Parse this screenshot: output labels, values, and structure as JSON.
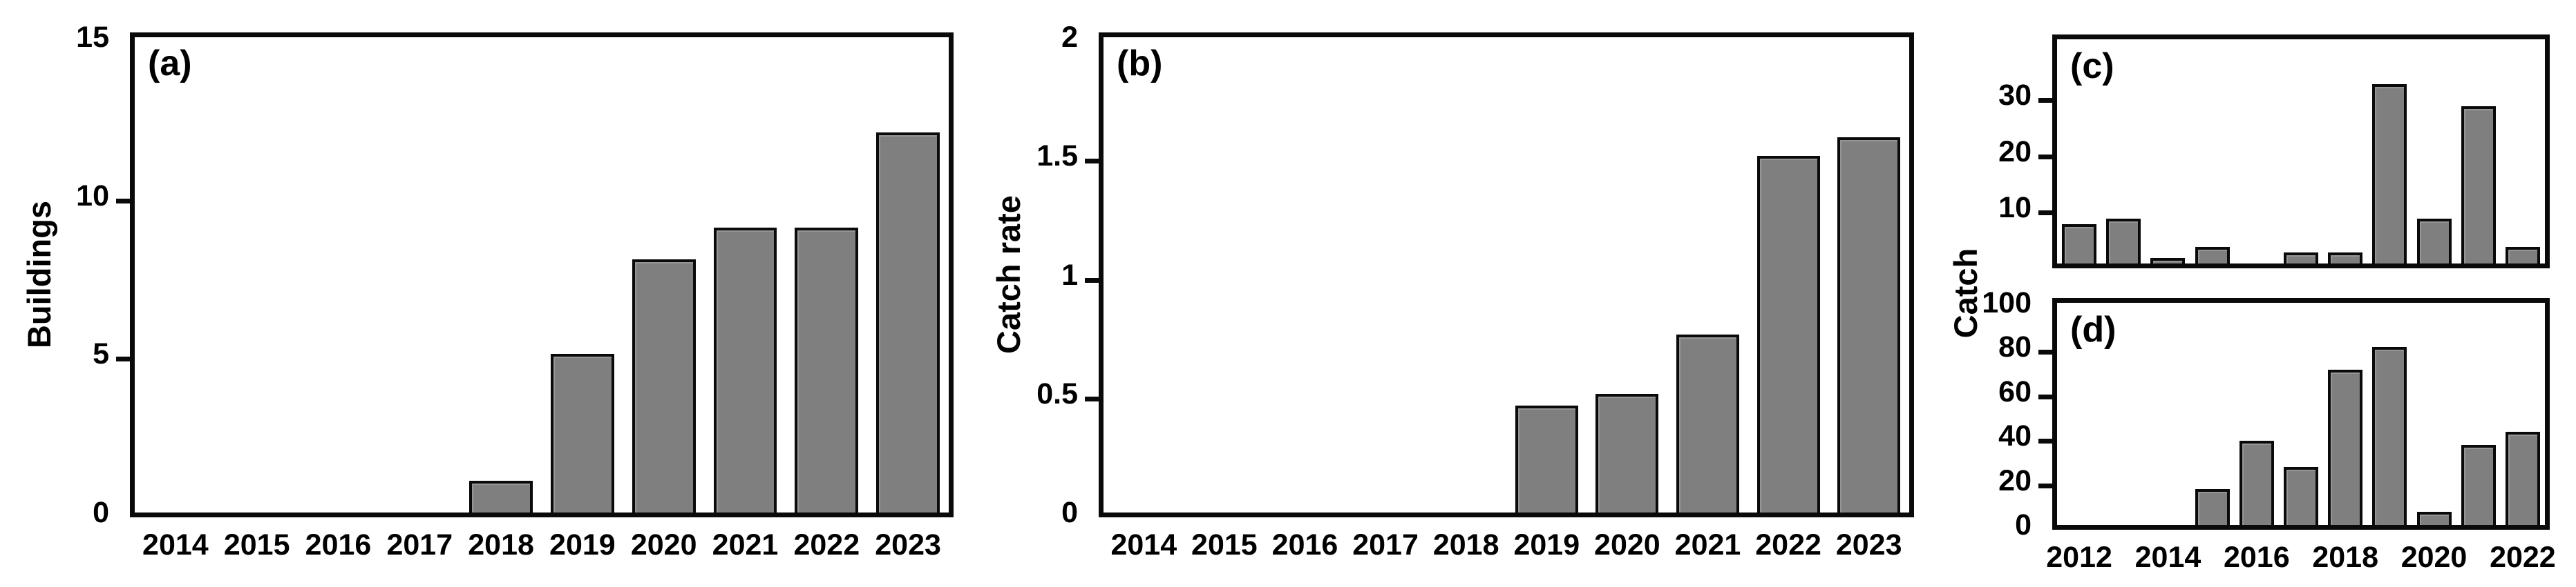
{
  "shared": {
    "ylabel_cd": "Catch"
  },
  "colors": {
    "bar_fill": "#7f7f7f",
    "bar_border": "#0a0a0a",
    "axis": "#0a0a0a",
    "background": "#ffffff"
  },
  "chart_data": [
    {
      "id": "a",
      "type": "bar",
      "panel_label": "(a)",
      "ylabel": "Buildings",
      "x": [
        "2014",
        "2015",
        "2016",
        "2017",
        "2018",
        "2019",
        "2020",
        "2021",
        "2022",
        "2023"
      ],
      "values": [
        0,
        0,
        0,
        0,
        1,
        5,
        8,
        9,
        9,
        12
      ],
      "ylim": [
        0,
        15
      ],
      "yticks": [
        {
          "v": 0,
          "label": "0"
        },
        {
          "v": 5,
          "label": "5"
        },
        {
          "v": 10,
          "label": "10"
        },
        {
          "v": 15,
          "label": "15"
        }
      ],
      "xticks": [
        "2014",
        "2015",
        "2016",
        "2017",
        "2018",
        "2019",
        "2020",
        "2021",
        "2022",
        "2023"
      ],
      "grid": false,
      "legend": false
    },
    {
      "id": "b",
      "type": "bar",
      "panel_label": "(b)",
      "ylabel": "Catch rate",
      "x": [
        "2014",
        "2015",
        "2016",
        "2017",
        "2018",
        "2019",
        "2020",
        "2021",
        "2022",
        "2023"
      ],
      "values": [
        0,
        0,
        0,
        0,
        0,
        0.45,
        0.5,
        0.75,
        1.5,
        1.58
      ],
      "ylim": [
        0,
        2
      ],
      "yticks": [
        {
          "v": 0,
          "label": "0"
        },
        {
          "v": 0.5,
          "label": "0.5"
        },
        {
          "v": 1,
          "label": "1"
        },
        {
          "v": 1.5,
          "label": "1.5"
        },
        {
          "v": 2,
          "label": "2"
        }
      ],
      "xticks": [
        "2014",
        "2015",
        "2016",
        "2017",
        "2018",
        "2019",
        "2020",
        "2021",
        "2022",
        "2023"
      ],
      "grid": false,
      "legend": false
    },
    {
      "id": "c",
      "type": "bar",
      "panel_label": "(c)",
      "ylabel": "",
      "x": [
        "2012",
        "2013",
        "2014",
        "2015",
        "2016",
        "2017",
        "2018",
        "2019",
        "2020",
        "2021",
        "2022"
      ],
      "values": [
        7,
        8,
        1,
        3,
        0,
        2,
        2,
        32,
        8,
        28,
        3
      ],
      "ylim": [
        0,
        40
      ],
      "yticks": [
        {
          "v": 10,
          "label": "10"
        },
        {
          "v": 20,
          "label": "20"
        },
        {
          "v": 30,
          "label": "30"
        }
      ],
      "xticks": [],
      "grid": false,
      "legend": false
    },
    {
      "id": "d",
      "type": "bar",
      "panel_label": "(d)",
      "ylabel": "",
      "x": [
        "2012",
        "2013",
        "2014",
        "2015",
        "2016",
        "2017",
        "2018",
        "2019",
        "2020",
        "2021",
        "2022"
      ],
      "values": [
        0,
        0,
        0,
        16,
        38,
        26,
        70,
        80,
        6,
        36,
        42
      ],
      "ylim": [
        0,
        100
      ],
      "yticks": [
        {
          "v": 0,
          "label": "0"
        },
        {
          "v": 20,
          "label": "20"
        },
        {
          "v": 40,
          "label": "40"
        },
        {
          "v": 60,
          "label": "60"
        },
        {
          "v": 80,
          "label": "80"
        },
        {
          "v": 100,
          "label": "100"
        }
      ],
      "xticks": [
        "2012",
        "2014",
        "2016",
        "2018",
        "2020",
        "2022"
      ],
      "grid": false,
      "legend": false
    }
  ]
}
